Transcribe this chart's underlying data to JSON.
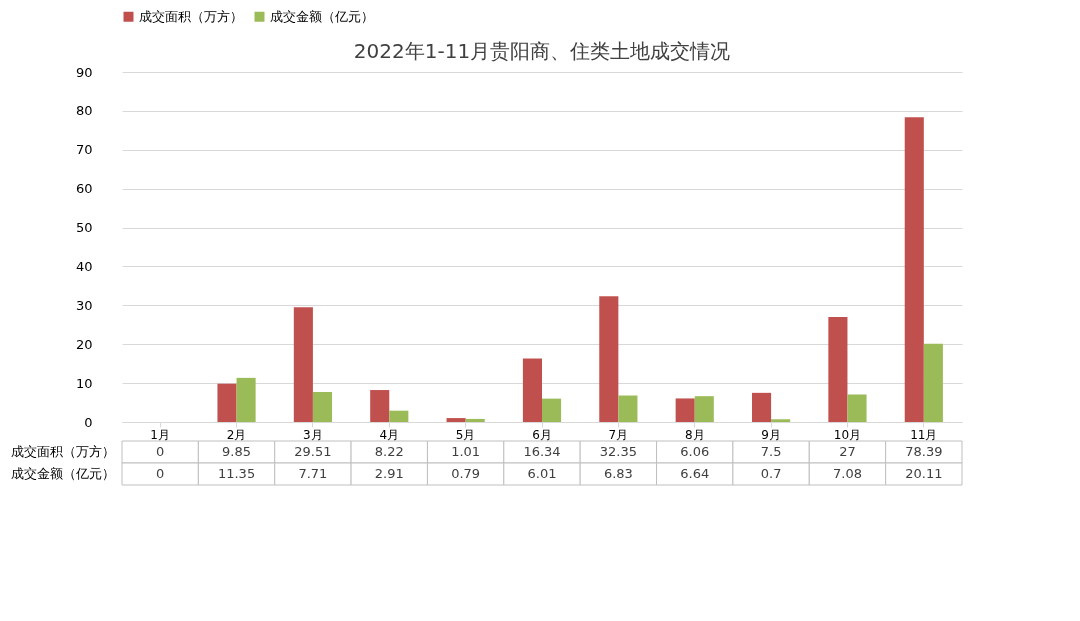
{
  "chart_data": {
    "type": "bar",
    "title": "2022年1-11月贵阳商、住类土地成交情况",
    "categories": [
      "1月",
      "2月",
      "3月",
      "4月",
      "5月",
      "6月",
      "7月",
      "8月",
      "9月",
      "10月",
      "11月"
    ],
    "series": [
      {
        "name": "成交面积（万方）",
        "color": "#c0504d",
        "values": [
          0,
          9.85,
          29.51,
          8.22,
          1.01,
          16.34,
          32.35,
          6.06,
          7.5,
          27,
          78.39
        ]
      },
      {
        "name": "成交金额（亿元）",
        "color": "#9bbb59",
        "values": [
          0,
          11.35,
          7.71,
          2.91,
          0.79,
          6.01,
          6.83,
          6.64,
          0.7,
          7.08,
          20.11
        ]
      }
    ],
    "ylim": [
      0,
      90
    ],
    "yticks": [
      0,
      10,
      20,
      30,
      40,
      50,
      60,
      70,
      80,
      90
    ],
    "grid": "y",
    "legend": "top",
    "data_labels": true
  }
}
